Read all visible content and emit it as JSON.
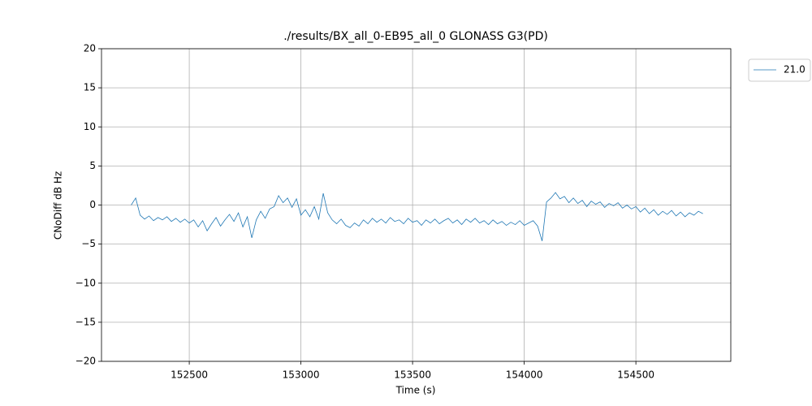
{
  "chart_data": {
    "type": "line",
    "title": "./results/BX_all_0-EB95_all_0 GLONASS G3(PD)",
    "x_label": "Time (s)",
    "y_label": "CNoDiff dB Hz",
    "xlim": [
      152107,
      154925
    ],
    "ylim": [
      -20,
      20
    ],
    "xticks": [
      152500,
      153000,
      153500,
      154000,
      154500
    ],
    "yticks": [
      {
        "value": -20,
        "label": "−20"
      },
      {
        "value": -15,
        "label": "−15"
      },
      {
        "value": -10,
        "label": "−10"
      },
      {
        "value": -5,
        "label": "−5"
      },
      0,
      5,
      10,
      15,
      20
    ],
    "grid": true,
    "legend": "outside-upper-right",
    "x": [
      152240,
      152260,
      152280,
      152300,
      152320,
      152340,
      152360,
      152380,
      152400,
      152420,
      152440,
      152460,
      152480,
      152500,
      152520,
      152540,
      152560,
      152580,
      152600,
      152620,
      152640,
      152660,
      152680,
      152700,
      152720,
      152740,
      152760,
      152780,
      152800,
      152820,
      152840,
      152860,
      152880,
      152900,
      152920,
      152940,
      152960,
      152980,
      153000,
      153020,
      153040,
      153060,
      153080,
      153100,
      153120,
      153140,
      153160,
      153180,
      153200,
      153220,
      153240,
      153260,
      153280,
      153300,
      153320,
      153340,
      153360,
      153380,
      153400,
      153420,
      153440,
      153460,
      153480,
      153500,
      153520,
      153540,
      153560,
      153580,
      153600,
      153620,
      153640,
      153660,
      153680,
      153700,
      153720,
      153740,
      153760,
      153780,
      153800,
      153820,
      153840,
      153860,
      153880,
      153900,
      153920,
      153940,
      153960,
      153980,
      154000,
      154020,
      154040,
      154060,
      154080,
      154100,
      154120,
      154140,
      154160,
      154180,
      154200,
      154220,
      154240,
      154260,
      154280,
      154300,
      154320,
      154340,
      154360,
      154380,
      154400,
      154420,
      154440,
      154460,
      154480,
      154500,
      154520,
      154540,
      154560,
      154580,
      154600,
      154620,
      154640,
      154660,
      154680,
      154700,
      154720,
      154740,
      154760,
      154780,
      154800
    ],
    "series": [
      {
        "name": "21.0",
        "color": "#1f77b4",
        "values": [
          0.0,
          0.9,
          -1.3,
          -1.8,
          -1.4,
          -2.0,
          -1.6,
          -1.9,
          -1.5,
          -2.1,
          -1.7,
          -2.2,
          -1.8,
          -2.3,
          -1.9,
          -2.8,
          -2.0,
          -3.3,
          -2.4,
          -1.6,
          -2.7,
          -1.9,
          -1.2,
          -2.1,
          -1.0,
          -2.8,
          -1.5,
          -4.2,
          -1.9,
          -0.8,
          -1.7,
          -0.5,
          -0.2,
          1.2,
          0.3,
          0.9,
          -0.3,
          0.8,
          -1.3,
          -0.6,
          -1.5,
          -0.2,
          -1.8,
          1.5,
          -1.0,
          -1.9,
          -2.4,
          -1.8,
          -2.6,
          -2.9,
          -2.3,
          -2.7,
          -1.9,
          -2.4,
          -1.7,
          -2.2,
          -1.8,
          -2.3,
          -1.6,
          -2.1,
          -1.9,
          -2.4,
          -1.7,
          -2.2,
          -2.0,
          -2.6,
          -1.9,
          -2.3,
          -1.8,
          -2.4,
          -2.0,
          -1.7,
          -2.3,
          -1.9,
          -2.5,
          -1.8,
          -2.2,
          -1.7,
          -2.3,
          -2.0,
          -2.5,
          -1.9,
          -2.4,
          -2.1,
          -2.6,
          -2.2,
          -2.5,
          -2.0,
          -2.6,
          -2.3,
          -2.0,
          -2.7,
          -4.6,
          0.4,
          0.9,
          1.6,
          0.8,
          1.1,
          0.3,
          0.9,
          0.2,
          0.6,
          -0.2,
          0.5,
          0.1,
          0.4,
          -0.3,
          0.2,
          -0.1,
          0.3,
          -0.4,
          0.0,
          -0.5,
          -0.2,
          -0.9,
          -0.4,
          -1.1,
          -0.6,
          -1.3,
          -0.8,
          -1.2,
          -0.7,
          -1.4,
          -0.9,
          -1.5,
          -1.0,
          -1.3,
          -0.8,
          -1.1
        ]
      }
    ]
  }
}
